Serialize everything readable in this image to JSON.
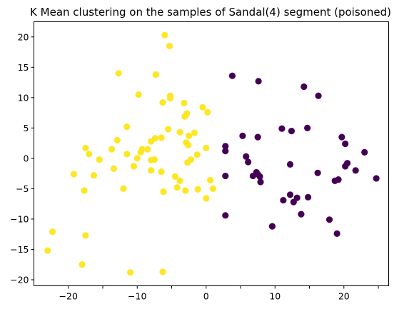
{
  "chart_data": {
    "type": "scatter",
    "title": "K Mean clustering on the samples of Sandal(4) segment (poisoned)",
    "xlabel": "",
    "ylabel": "",
    "xlim": [
      -25,
      26.5
    ],
    "ylim": [
      -21,
      22.5
    ],
    "xticks": [
      -20,
      -15,
      -10,
      -5,
      0,
      5,
      10,
      15,
      20,
      25
    ],
    "yticks": [
      -20,
      -15,
      -10,
      -5,
      0,
      5,
      10,
      15,
      20
    ],
    "xtick_labels": [
      "−20",
      "−10",
      "0",
      "10",
      "20"
    ],
    "xtick_label_values": [
      -20,
      -10,
      0,
      10,
      20
    ],
    "ytick_labels": [
      "−20",
      "−15",
      "−10",
      "−5",
      "0",
      "5",
      "10",
      "15",
      "20"
    ],
    "ytick_label_values": [
      -20,
      -15,
      -10,
      -5,
      0,
      5,
      10,
      15,
      20
    ],
    "grid": false,
    "legend": "none",
    "series": [
      {
        "color": "#fde725",
        "points": [
          [
            -6.0,
            20.3
          ],
          [
            -5.3,
            18.5
          ],
          [
            -12.7,
            14.0
          ],
          [
            -7.3,
            13.8
          ],
          [
            -9.8,
            10.5
          ],
          [
            -5.2,
            10.3
          ],
          [
            -5.2,
            9.9
          ],
          [
            -6.3,
            9.2
          ],
          [
            -3.2,
            9.1
          ],
          [
            -0.5,
            8.4
          ],
          [
            0.2,
            7.6
          ],
          [
            -2.8,
            7.4
          ],
          [
            -3.1,
            6.9
          ],
          [
            -11.5,
            5.2
          ],
          [
            -5.5,
            4.8
          ],
          [
            -1.7,
            4.2
          ],
          [
            -2.5,
            3.7
          ],
          [
            -3.8,
            4.3
          ],
          [
            -7.4,
            3.3
          ],
          [
            -6.5,
            3.4
          ],
          [
            -12.9,
            3.0
          ],
          [
            -8.0,
            2.8
          ],
          [
            -2.9,
            2.6
          ],
          [
            -2.6,
            2.2
          ],
          [
            -8.5,
            1.5
          ],
          [
            -13.7,
            1.5
          ],
          [
            -17.5,
            1.7
          ],
          [
            -9.3,
            1.5
          ],
          [
            0.0,
            1.7
          ],
          [
            -9.5,
            1.0
          ],
          [
            -11.5,
            0.7
          ],
          [
            -17.0,
            0.7
          ],
          [
            -15.5,
            -0.2
          ],
          [
            -10.0,
            0.0
          ],
          [
            -8.0,
            -0.3
          ],
          [
            -7.5,
            -0.2
          ],
          [
            -2.2,
            -0.2
          ],
          [
            -2.7,
            -0.7
          ],
          [
            -1.3,
            0.6
          ],
          [
            -10.5,
            -1.3
          ],
          [
            -13.4,
            -1.7
          ],
          [
            -8.0,
            -2.0
          ],
          [
            -6.5,
            -2.2
          ],
          [
            -19.2,
            -2.6
          ],
          [
            -16.3,
            -2.8
          ],
          [
            -4.5,
            -3.0
          ],
          [
            -3.8,
            -3.7
          ],
          [
            0.6,
            -3.6
          ],
          [
            -12.0,
            -5.0
          ],
          [
            -17.7,
            -5.3
          ],
          [
            -6.2,
            -5.5
          ],
          [
            -4.2,
            -4.8
          ],
          [
            -3.0,
            -5.3
          ],
          [
            -1.2,
            -5.1
          ],
          [
            1.0,
            -5.0
          ],
          [
            0.0,
            -6.6
          ],
          [
            -22.3,
            -12.1
          ],
          [
            -17.5,
            -12.7
          ],
          [
            -23.0,
            -15.2
          ],
          [
            -18.0,
            -17.5
          ],
          [
            -11.0,
            -18.8
          ],
          [
            -6.3,
            -18.7
          ]
        ]
      },
      {
        "color": "#440154",
        "points": [
          [
            3.8,
            13.6
          ],
          [
            7.6,
            12.7
          ],
          [
            14.2,
            11.8
          ],
          [
            16.3,
            10.3
          ],
          [
            11.0,
            4.9
          ],
          [
            12.4,
            4.5
          ],
          [
            14.7,
            5.0
          ],
          [
            5.3,
            3.7
          ],
          [
            7.5,
            3.5
          ],
          [
            2.8,
            2.0
          ],
          [
            2.8,
            1.2
          ],
          [
            5.8,
            0.3
          ],
          [
            6.1,
            -0.6
          ],
          [
            12.2,
            -1.0
          ],
          [
            16.2,
            -2.4
          ],
          [
            19.7,
            3.5
          ],
          [
            20.2,
            2.4
          ],
          [
            23.0,
            1.0
          ],
          [
            20.5,
            -0.8
          ],
          [
            20.2,
            -1.3
          ],
          [
            21.7,
            -2.0
          ],
          [
            7.3,
            -2.3
          ],
          [
            6.8,
            -2.9
          ],
          [
            7.5,
            -2.6
          ],
          [
            7.8,
            -3.0
          ],
          [
            7.9,
            -3.9
          ],
          [
            2.8,
            -2.9
          ],
          [
            12.2,
            -6.0
          ],
          [
            13.2,
            -6.5
          ],
          [
            12.7,
            -7.2
          ],
          [
            14.8,
            -6.4
          ],
          [
            11.2,
            -6.9
          ],
          [
            18.7,
            -3.7
          ],
          [
            19.2,
            -3.5
          ],
          [
            24.7,
            -3.3
          ],
          [
            2.8,
            -9.4
          ],
          [
            9.6,
            -11.2
          ],
          [
            13.8,
            -9.2
          ],
          [
            17.9,
            -10.1
          ],
          [
            19.0,
            -12.4
          ]
        ]
      }
    ]
  }
}
